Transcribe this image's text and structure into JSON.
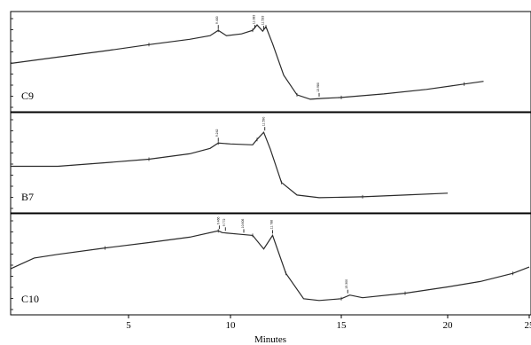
{
  "chart_data": {
    "type": "line",
    "title": "",
    "xlabel": "Minutes",
    "ylabel": "",
    "xlim": [
      0,
      25
    ],
    "ylim": [
      0,
      1
    ],
    "x_ticks": [
      5,
      10,
      15,
      20,
      25
    ],
    "x_tick_labels": [
      "5",
      "10",
      "15",
      "20",
      "25"
    ],
    "grid": false,
    "panels": [
      {
        "name": "C9",
        "x": [
          0,
          2,
          4,
          6,
          8,
          9,
          9.4,
          9.8,
          10.5,
          11,
          11.2,
          11.45,
          11.6,
          11.9,
          12.4,
          13.0,
          13.6,
          14.2,
          15,
          17,
          19,
          21,
          22.2
        ],
        "y": [
          0.48,
          0.55,
          0.62,
          0.69,
          0.75,
          0.79,
          0.85,
          0.79,
          0.81,
          0.85,
          0.91,
          0.84,
          0.89,
          0.7,
          0.35,
          0.13,
          0.08,
          0.09,
          0.1,
          0.14,
          0.19,
          0.25,
          0.28
        ],
        "peak_labels": [
          {
            "x": 9.4,
            "label": "9.400"
          },
          {
            "x": 11.1,
            "label": "11.083"
          },
          {
            "x": 11.5,
            "label": "11.533"
          },
          {
            "x": 14.0,
            "label": "13.980"
          }
        ]
      },
      {
        "name": "B7",
        "x": [
          0,
          2,
          4,
          6,
          8,
          9,
          9.4,
          10,
          11,
          11.2,
          11.5,
          11.8,
          12.3,
          13,
          14,
          16,
          18,
          20
        ],
        "y": [
          0.46,
          0.46,
          0.5,
          0.54,
          0.6,
          0.66,
          0.72,
          0.71,
          0.7,
          0.76,
          0.84,
          0.65,
          0.28,
          0.14,
          0.11,
          0.12,
          0.14,
          0.16
        ],
        "peak_labels": [
          {
            "x": 9.4,
            "label": "9.242"
          },
          {
            "x": 11.55,
            "label": "11.590"
          }
        ]
      },
      {
        "name": "C10",
        "x": [
          0,
          1,
          2,
          4,
          6,
          8,
          9.4,
          9.6,
          10.5,
          11.0,
          11.5,
          11.9,
          12.5,
          13.3,
          14,
          15,
          15.4,
          16,
          18,
          20,
          22,
          24,
          25
        ],
        "y": [
          0.45,
          0.57,
          0.61,
          0.68,
          0.74,
          0.8,
          0.87,
          0.85,
          0.83,
          0.82,
          0.67,
          0.82,
          0.4,
          0.12,
          0.1,
          0.12,
          0.16,
          0.13,
          0.18,
          0.25,
          0.31,
          0.4,
          0.47
        ],
        "peak_labels": [
          {
            "x": 9.45,
            "label": "9.466"
          },
          {
            "x": 9.75,
            "label": "9.772"
          },
          {
            "x": 10.6,
            "label": "10.606"
          },
          {
            "x": 11.9,
            "label": "11.788"
          },
          {
            "x": 15.3,
            "label": "15.300"
          }
        ]
      }
    ]
  }
}
